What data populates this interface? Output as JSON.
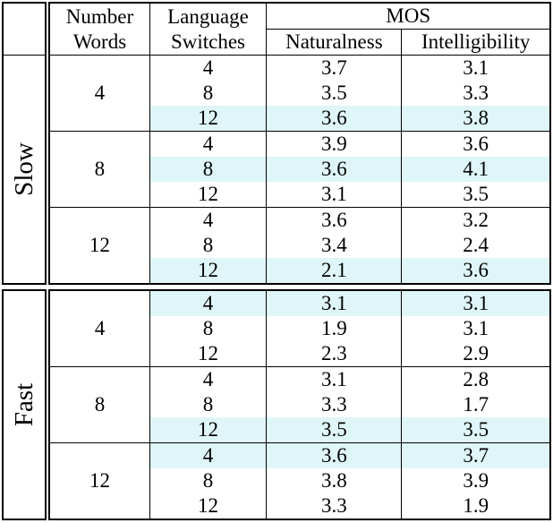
{
  "colors": {
    "highlight": "#dff6f8",
    "border": "#000000",
    "text": "#000000"
  },
  "header": {
    "number_words": "Number Words",
    "language_switches": "Language Switches",
    "mos": "MOS",
    "naturalness": "Naturalness",
    "intelligibility": "Intelligibility"
  },
  "sections": [
    {
      "label": "Slow",
      "groups": [
        {
          "number_words": "4",
          "rows": [
            {
              "language_switches": "4",
              "naturalness": "3.7",
              "intelligibility": "3.1",
              "highlight": false
            },
            {
              "language_switches": "8",
              "naturalness": "3.5",
              "intelligibility": "3.3",
              "highlight": false
            },
            {
              "language_switches": "12",
              "naturalness": "3.6",
              "intelligibility": "3.8",
              "highlight": true
            }
          ]
        },
        {
          "number_words": "8",
          "rows": [
            {
              "language_switches": "4",
              "naturalness": "3.9",
              "intelligibility": "3.6",
              "highlight": false
            },
            {
              "language_switches": "8",
              "naturalness": "3.6",
              "intelligibility": "4.1",
              "highlight": true
            },
            {
              "language_switches": "12",
              "naturalness": "3.1",
              "intelligibility": "3.5",
              "highlight": false
            }
          ]
        },
        {
          "number_words": "12",
          "rows": [
            {
              "language_switches": "4",
              "naturalness": "3.6",
              "intelligibility": "3.2",
              "highlight": false
            },
            {
              "language_switches": "8",
              "naturalness": "3.4",
              "intelligibility": "2.4",
              "highlight": false
            },
            {
              "language_switches": "12",
              "naturalness": "2.1",
              "intelligibility": "3.6",
              "highlight": true
            }
          ]
        }
      ]
    },
    {
      "label": "Fast",
      "groups": [
        {
          "number_words": "4",
          "rows": [
            {
              "language_switches": "4",
              "naturalness": "3.1",
              "intelligibility": "3.1",
              "highlight": true
            },
            {
              "language_switches": "8",
              "naturalness": "1.9",
              "intelligibility": "3.1",
              "highlight": false
            },
            {
              "language_switches": "12",
              "naturalness": "2.3",
              "intelligibility": "2.9",
              "highlight": false
            }
          ]
        },
        {
          "number_words": "8",
          "rows": [
            {
              "language_switches": "4",
              "naturalness": "3.1",
              "intelligibility": "2.8",
              "highlight": false
            },
            {
              "language_switches": "8",
              "naturalness": "3.3",
              "intelligibility": "1.7",
              "highlight": false
            },
            {
              "language_switches": "12",
              "naturalness": "3.5",
              "intelligibility": "3.5",
              "highlight": true
            }
          ]
        },
        {
          "number_words": "12",
          "rows": [
            {
              "language_switches": "4",
              "naturalness": "3.6",
              "intelligibility": "3.7",
              "highlight": true
            },
            {
              "language_switches": "8",
              "naturalness": "3.8",
              "intelligibility": "3.9",
              "highlight": false
            },
            {
              "language_switches": "12",
              "naturalness": "3.3",
              "intelligibility": "1.9",
              "highlight": false
            }
          ]
        }
      ]
    }
  ]
}
